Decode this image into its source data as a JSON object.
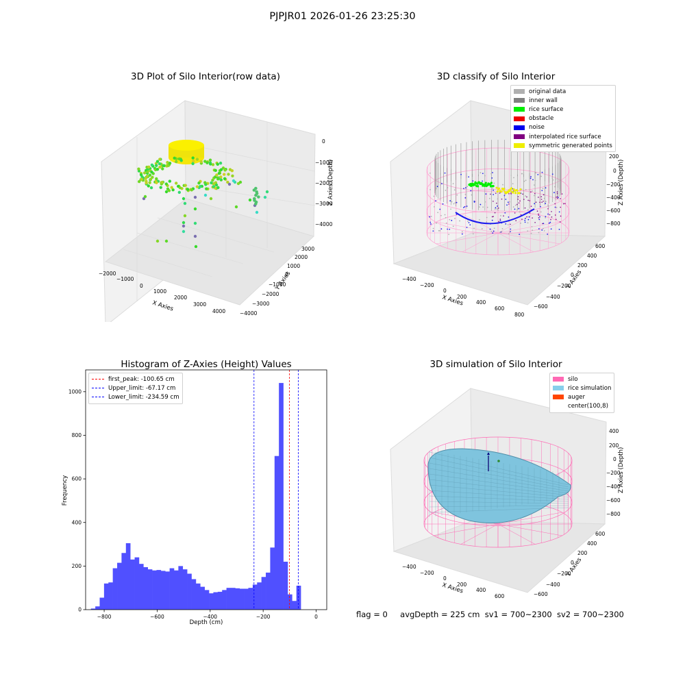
{
  "suptitle": "PJPJR01 2026-01-26 23:25:30",
  "panels": {
    "raw": {
      "title": "3D Plot of Silo Interior(row data)",
      "xlabel": "X Axies",
      "ylabel": "Y Axies",
      "zlabel": "Z Axies (Depth)",
      "xticks": [
        "−2000",
        "−1000",
        "0",
        "1000",
        "2000",
        "3000",
        "4000"
      ],
      "yticks": [
        "−4000",
        "−3000",
        "−2000",
        "−1000",
        "0",
        "1000",
        "2000",
        "3000"
      ],
      "zticks": [
        "0",
        "−1000",
        "−2000",
        "−3000",
        "−4000"
      ]
    },
    "classify": {
      "title": "3D classify of Silo Interior",
      "xlabel": "X Axies",
      "ylabel": "Y Axies",
      "zlabel": "Z Axies (Depth)",
      "xticks": [
        "−400",
        "−200",
        "0",
        "200",
        "400",
        "600",
        "800"
      ],
      "yticks": [
        "−600",
        "−400",
        "−200",
        "0",
        "200",
        "400",
        "600"
      ],
      "zticks": [
        "200",
        "0",
        "−200",
        "−400",
        "−600",
        "−800"
      ],
      "legend": [
        {
          "label": "original data",
          "color": "#b0b0b0"
        },
        {
          "label": "inner wall",
          "color": "#808080"
        },
        {
          "label": "rice surface",
          "color": "#00ee00"
        },
        {
          "label": "obstacle",
          "color": "#ee0000"
        },
        {
          "label": "noise",
          "color": "#0000ee"
        },
        {
          "label": "interpolated rice surface",
          "color": "#800080"
        },
        {
          "label": "symmetric generated points",
          "color": "#eeee00"
        }
      ]
    },
    "simulation": {
      "title": "3D simulation of Silo Interior",
      "xlabel": "X Axies",
      "ylabel": "Y Axies",
      "zlabel": "Z Axies (Depth)",
      "xticks": [
        "−400",
        "−200",
        "0",
        "200",
        "400",
        "600"
      ],
      "yticks": [
        "−600",
        "−400",
        "−200",
        "0",
        "200",
        "400",
        "600"
      ],
      "zticks": [
        "400",
        "200",
        "0",
        "−200",
        "−400",
        "−600",
        "−800"
      ],
      "legend": [
        {
          "label": "silo",
          "color": "#ff69b4"
        },
        {
          "label": "rice simulation",
          "color": "#87ceeb"
        },
        {
          "label": "auger",
          "color": "#ff4500"
        },
        {
          "label": "center(100,8)",
          "color": ""
        }
      ]
    }
  },
  "chart_data": [
    {
      "type": "bar",
      "title": "Histogram of Z-Axies (Height) Values",
      "xlabel": "Depth (cm)",
      "ylabel": "Frequency",
      "xlim": [
        -870,
        40
      ],
      "ylim": [
        0,
        1100
      ],
      "xticks": [
        -800,
        -600,
        -400,
        -200,
        0
      ],
      "yticks": [
        0,
        200,
        400,
        600,
        800,
        1000
      ],
      "bin_start": -850,
      "bin_width": 16.5,
      "values": [
        5,
        15,
        55,
        120,
        125,
        190,
        215,
        260,
        305,
        230,
        240,
        210,
        195,
        185,
        180,
        182,
        178,
        175,
        190,
        180,
        200,
        185,
        165,
        140,
        120,
        105,
        90,
        75,
        80,
        82,
        90,
        100,
        100,
        98,
        96,
        96,
        100,
        115,
        125,
        150,
        170,
        285,
        705,
        1040,
        220,
        70,
        40,
        110
      ],
      "bar_color": "#5050ff",
      "grid": false,
      "legend_position": "top-left",
      "reference_lines": [
        {
          "label": "first_peak: -100.65 cm",
          "x": -100.65,
          "color": "#ff0000"
        },
        {
          "label": "Upper_limit: -67.17 cm",
          "x": -67.17,
          "color": "#0000ff"
        },
        {
          "label": "Lower_limit: -234.59 cm",
          "x": -234.59,
          "color": "#0000ff"
        }
      ]
    }
  ],
  "footer": {
    "flag": "flag = 0",
    "avg": "avgDepth = 225 cm",
    "sv1": "sv1 = 700~2300",
    "sv2": "sv2 = 700~2300"
  }
}
